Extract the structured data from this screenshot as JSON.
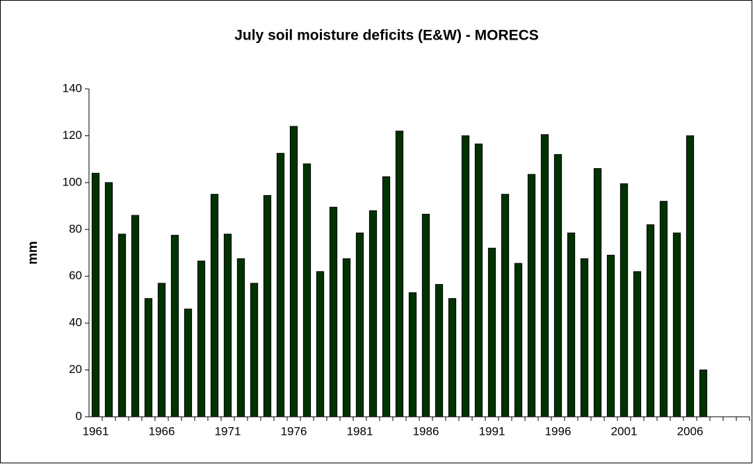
{
  "chart_data": {
    "type": "bar",
    "title": "July soil moisture deficits (E&W) - MORECS",
    "y_label": "mm",
    "categories": [
      "1961",
      null,
      null,
      null,
      null,
      "1966",
      null,
      null,
      null,
      null,
      "1971",
      null,
      null,
      null,
      null,
      "1976",
      null,
      null,
      null,
      null,
      "1981",
      null,
      null,
      null,
      null,
      "1986",
      null,
      null,
      null,
      null,
      "1991",
      null,
      null,
      null,
      null,
      "1996",
      null,
      null,
      null,
      null,
      "2001",
      null,
      null,
      null,
      null,
      "2006",
      null,
      null,
      null,
      null
    ],
    "values": [
      104,
      100,
      78,
      86,
      50.5,
      57,
      77.5,
      46,
      66.5,
      95,
      78,
      67.5,
      57,
      94.5,
      112.5,
      124,
      108,
      62,
      89.5,
      67.5,
      78.5,
      88,
      102.5,
      122,
      53,
      86.5,
      56.5,
      50.5,
      120,
      116.5,
      72,
      95,
      65.5,
      103.5,
      120.5,
      112,
      78.5,
      67.5,
      106,
      69,
      99.5,
      62,
      82,
      92,
      78.5,
      120,
      20,
      null,
      null,
      null
    ],
    "color": "#003300",
    "ylim": [
      0,
      140
    ],
    "yticks": [
      0,
      20,
      40,
      60,
      80,
      100,
      120,
      140
    ],
    "grid": false
  }
}
